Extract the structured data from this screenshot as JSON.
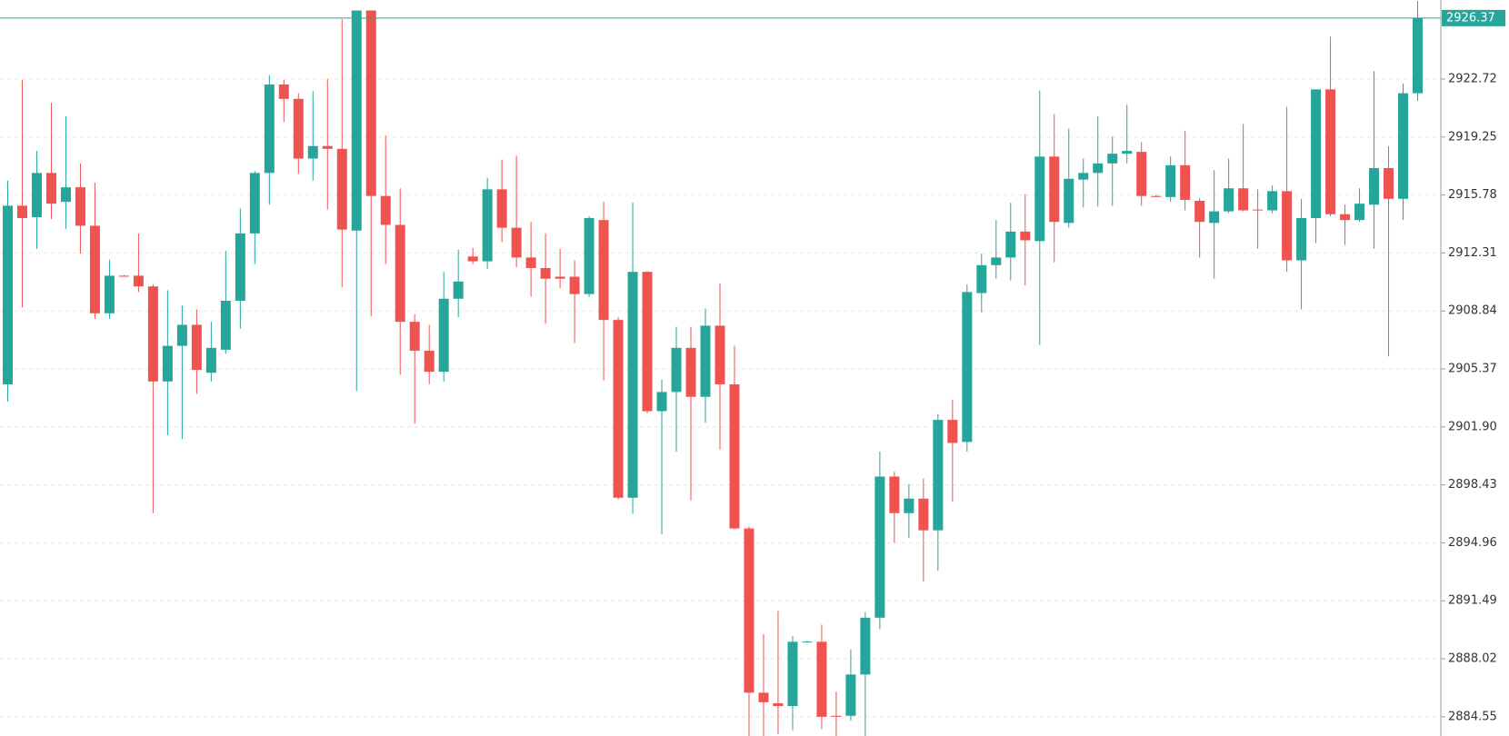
{
  "chart_data": {
    "type": "candlestick",
    "up_color": "#26a69a",
    "down_color": "#ef5350",
    "ylim": [
      2883.4,
      2927.45
    ],
    "yticks": [
      2884.55,
      2888.02,
      2891.49,
      2894.96,
      2898.43,
      {
        "value": 2901.9,
        "label": "2901.90"
      },
      2905.37,
      2908.84,
      2912.31,
      2915.78,
      2919.25,
      2922.72
    ],
    "grid": true,
    "last_price": 2926.37,
    "open": [
      2904.45,
      2915.14,
      2914.45,
      2917.1,
      2915.37,
      2916.24,
      2913.94,
      2908.7,
      2910.95,
      2910.95,
      2910.31,
      2904.62,
      2906.75,
      2908.01,
      2905.14,
      2906.52,
      2909.45,
      2913.48,
      2917.1,
      2922.39,
      2921.53,
      2917.96,
      2918.71,
      2918.54,
      2913.65,
      2926.82,
      2915.72,
      2913.99,
      2908.19,
      2906.46,
      2905.2,
      2909.57,
      2912.1,
      2911.81,
      2916.12,
      2913.82,
      2912.04,
      2911.41,
      2910.89,
      2910.89,
      2909.85,
      2914.28,
      2908.3,
      2897.66,
      2911.18,
      2902.84,
      2903.99,
      2906.63,
      2903.7,
      2907.96,
      2904.45,
      2895.82,
      2885.99,
      2885.36,
      2885.19,
      2889.04,
      2889.04,
      2884.61,
      2884.61,
      2887.08,
      2890.48,
      2898.93,
      2896.74,
      2897.61,
      2895.71,
      2902.32,
      2901.0,
      2909.91,
      2911.58,
      2912.04,
      2913.59,
      2913.02,
      2918.08,
      2914.11,
      2916.7,
      2917.1,
      2917.67,
      2918.25,
      2918.36,
      2915.72,
      2915.66,
      2917.56,
      2915.43,
      2914.11,
      2914.8,
      2916.18,
      2914.91,
      2914.86,
      2916.01,
      2911.87,
      2914.4,
      2922.1,
      2914.63,
      2914.28,
      2915.2,
      2917.39,
      2915.55,
      2921.87
    ],
    "high": [
      2916.64,
      2922.68,
      2918.42,
      2921.3,
      2920.49,
      2917.67,
      2916.52,
      2911.92,
      2911.0,
      2913.48,
      2910.43,
      2910.08,
      2909.16,
      2908.93,
      2908.19,
      2912.44,
      2914.97,
      2917.21,
      2922.96,
      2922.68,
      2921.87,
      2921.99,
      2922.73,
      2926.3,
      2926.82,
      2926.82,
      2919.34,
      2916.18,
      2908.65,
      2908.01,
      2911.18,
      2912.5,
      2912.61,
      2916.81,
      2917.9,
      2918.13,
      2914.17,
      2913.48,
      2912.56,
      2911.87,
      2914.51,
      2915.37,
      2908.47,
      2915.32,
      2911.23,
      2904.74,
      2907.9,
      2907.9,
      2908.99,
      2910.49,
      2906.75,
      2895.94,
      2889.5,
      2890.88,
      2889.38,
      2889.1,
      2890.07,
      2886.05,
      2888.58,
      2890.82,
      2900.42,
      2899.22,
      2898.47,
      2898.81,
      2902.67,
      2903.53,
      2910.43,
      2912.27,
      2914.28,
      2915.32,
      2915.83,
      2922.04,
      2920.61,
      2919.74,
      2917.96,
      2920.49,
      2919.28,
      2921.18,
      2918.94,
      2915.78,
      2918.08,
      2919.63,
      2915.6,
      2917.27,
      2917.96,
      2920.03,
      2916.12,
      2916.35,
      2921.07,
      2915.55,
      2922.1,
      2925.26,
      2915.2,
      2916.18,
      2923.19,
      2918.71,
      2922.45,
      2927.4
    ],
    "low": [
      2903.41,
      2909.05,
      2912.56,
      2914.34,
      2913.76,
      2912.27,
      2908.36,
      2908.36,
      2910.89,
      2909.97,
      2896.74,
      2901.4,
      2901.17,
      2903.87,
      2904.62,
      2906.29,
      2907.78,
      2911.64,
      2915.2,
      2920.15,
      2917.04,
      2916.64,
      2914.91,
      2910.26,
      2904.05,
      2908.53,
      2911.64,
      2905.02,
      2902.09,
      2904.45,
      2904.62,
      2908.47,
      2911.64,
      2911.35,
      2912.96,
      2911.46,
      2909.68,
      2908.07,
      2910.2,
      2906.92,
      2909.68,
      2904.68,
      2897.55,
      2896.69,
      2902.72,
      2895.48,
      2900.42,
      2897.49,
      2902.15,
      2900.54,
      2895.77,
      2883.2,
      2883.3,
      2883.5,
      2883.75,
      2888.98,
      2883.81,
      2883.3,
      2884.32,
      2883.4,
      2889.79,
      2894.96,
      2895.25,
      2892.66,
      2893.29,
      2897.43,
      2900.42,
      2908.76,
      2910.77,
      2910.66,
      2910.37,
      2906.81,
      2911.75,
      2913.82,
      2915.03,
      2915.09,
      2915.14,
      2917.67,
      2915.14,
      2915.66,
      2915.37,
      2914.86,
      2912.04,
      2910.77,
      2914.68,
      2914.8,
      2912.56,
      2914.68,
      2911.18,
      2908.93,
      2912.9,
      2914.51,
      2912.79,
      2914.17,
      2912.56,
      2906.12,
      2914.28,
      2921.41
    ],
    "close": [
      2915.14,
      2914.4,
      2917.1,
      2915.26,
      2916.24,
      2913.94,
      2908.7,
      2910.95,
      2910.89,
      2910.31,
      2904.62,
      2906.75,
      2908.01,
      2905.31,
      2906.63,
      2909.45,
      2913.48,
      2917.1,
      2922.39,
      2921.53,
      2917.96,
      2918.71,
      2918.54,
      2913.71,
      2926.82,
      2915.72,
      2913.99,
      2908.19,
      2906.46,
      2905.2,
      2909.57,
      2910.6,
      2911.81,
      2916.12,
      2913.82,
      2912.04,
      2911.41,
      2910.77,
      2910.77,
      2909.85,
      2914.4,
      2908.3,
      2897.66,
      2911.18,
      2902.84,
      2903.99,
      2906.63,
      2903.7,
      2907.96,
      2904.45,
      2895.82,
      2885.99,
      2885.42,
      2885.19,
      2889.04,
      2889.05,
      2884.55,
      2884.55,
      2887.08,
      2890.48,
      2898.93,
      2896.74,
      2897.61,
      2895.71,
      2902.32,
      2900.94,
      2909.97,
      2911.58,
      2912.04,
      2913.59,
      2913.07,
      2918.08,
      2914.17,
      2916.75,
      2917.1,
      2917.67,
      2918.25,
      2918.42,
      2915.72,
      2915.66,
      2917.56,
      2915.49,
      2914.17,
      2914.8,
      2916.18,
      2914.86,
      2914.86,
      2916.01,
      2911.87,
      2914.4,
      2922.1,
      2914.63,
      2914.28,
      2915.26,
      2917.39,
      2915.55,
      2921.87,
      2926.37
    ]
  }
}
